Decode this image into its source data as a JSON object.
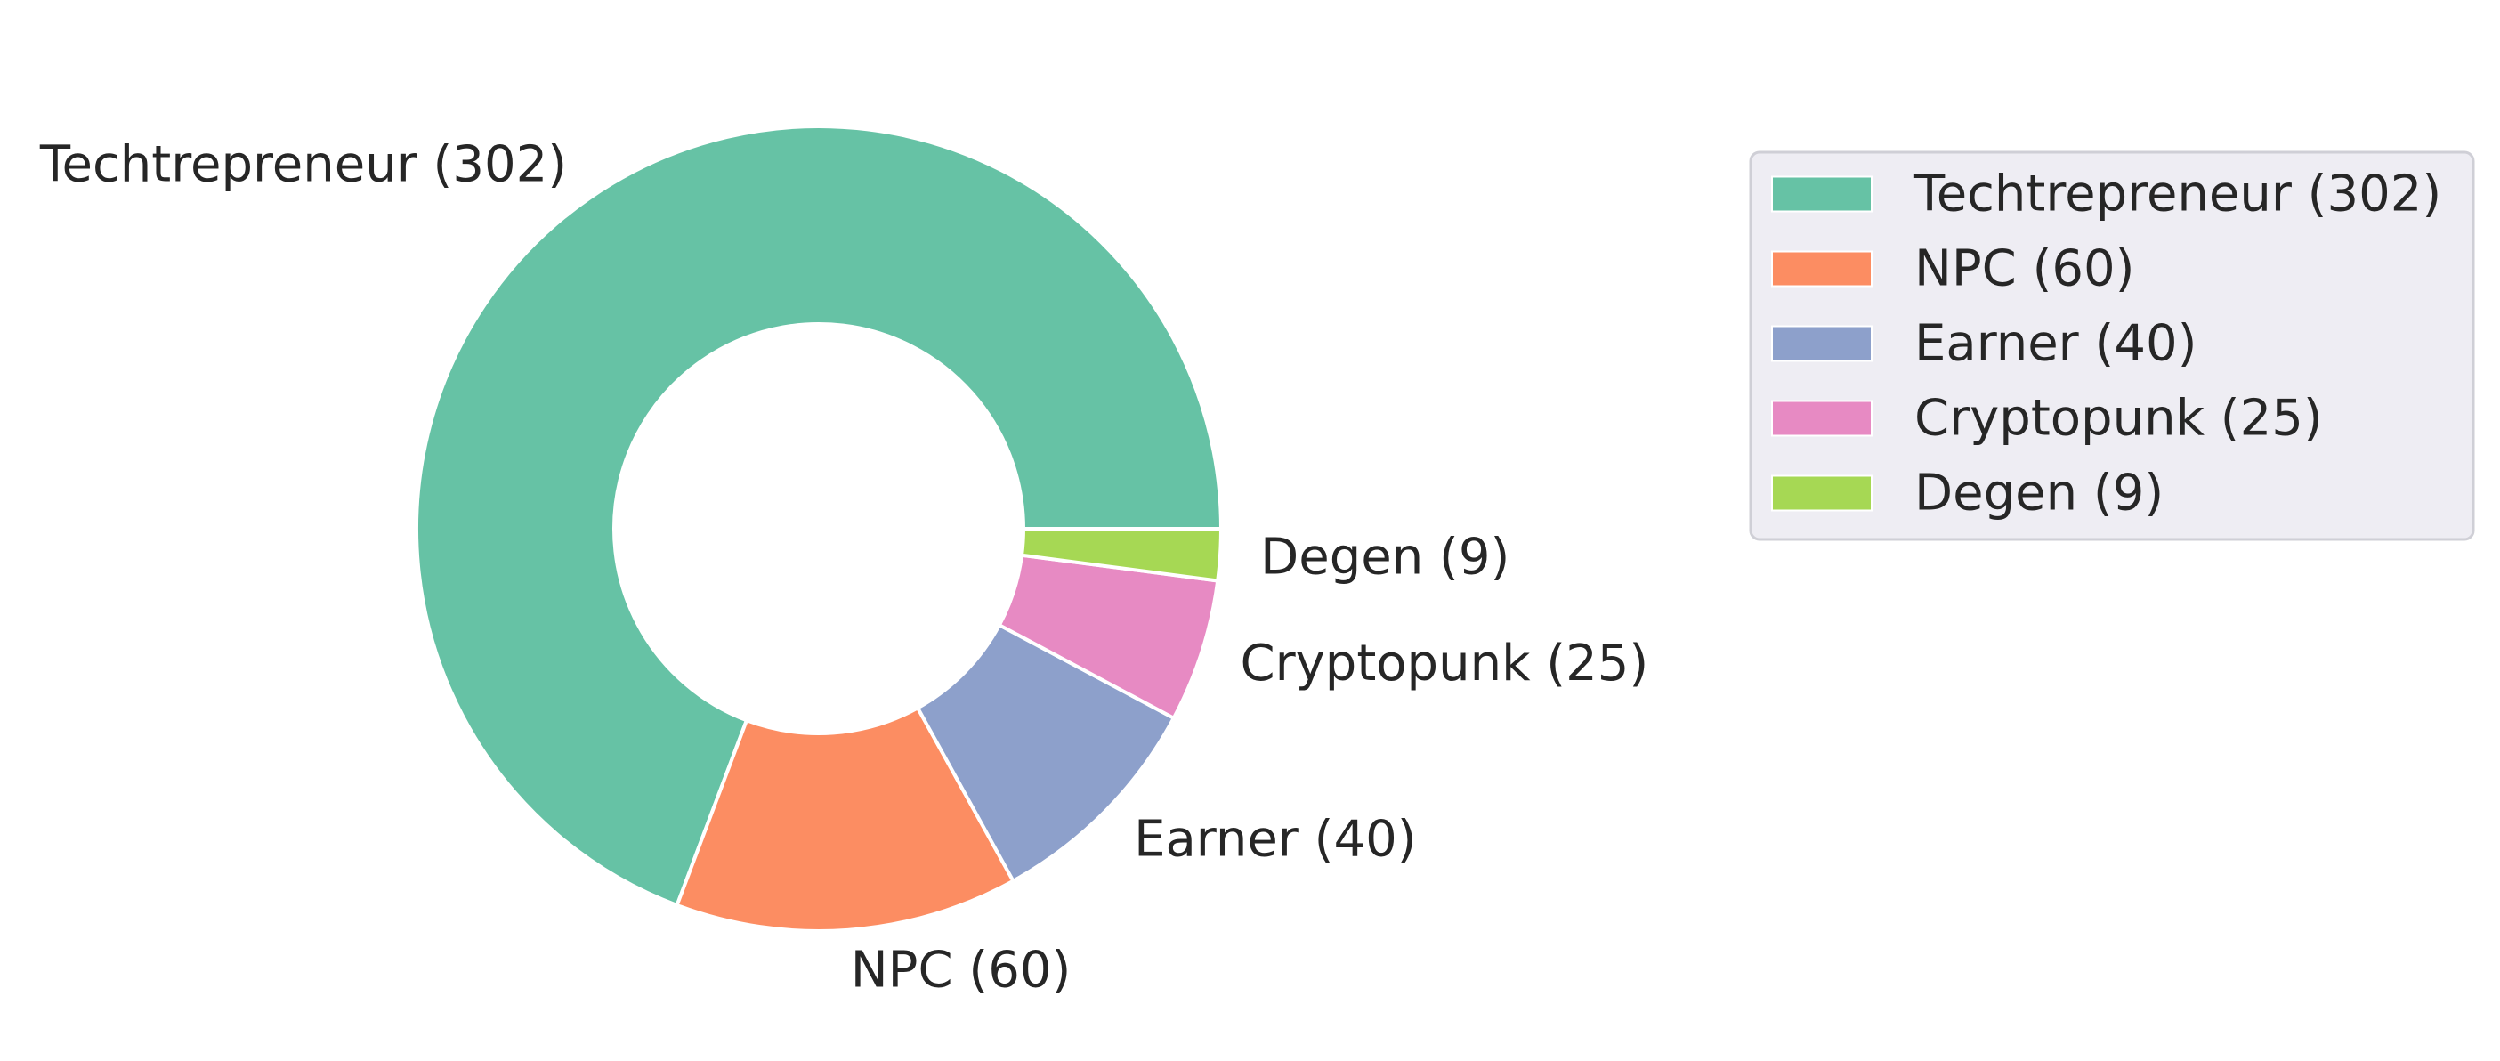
{
  "chart_data": {
    "type": "pie",
    "donut": true,
    "title": "",
    "categories": [
      "Techtrepreneur (302)",
      "NPC (60)",
      "Earner (40)",
      "Cryptopunk (25)",
      "Degen (9)"
    ],
    "values": [
      302,
      60,
      40,
      25,
      9
    ],
    "colors": [
      "#66c2a5",
      "#fc8d62",
      "#8da0cb",
      "#e78ac3",
      "#a6d854"
    ],
    "start_angle": 0,
    "direction": "counterclockwise",
    "legend": {
      "placement": "right",
      "entries": [
        "Techtrepreneur (302)",
        "NPC (60)",
        "Earner (40)",
        "Cryptopunk (25)",
        "Degen (9)"
      ]
    }
  }
}
